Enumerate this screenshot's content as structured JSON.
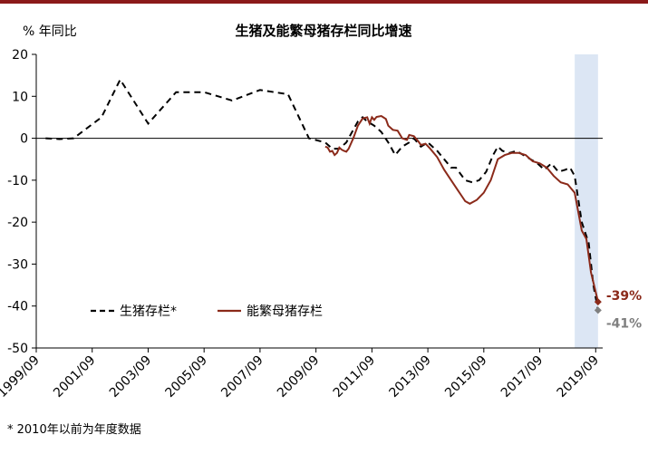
{
  "colors": {
    "top_bar": "#8b1a1a",
    "highlight": "#dce6f4",
    "series_breeding": "#8b2a1a",
    "series_total": "#000000",
    "label_total": "#7f7f7f"
  },
  "chart_data": {
    "type": "line",
    "title": "生猪及能繁母猪存栏同比增速",
    "ylabel": "% 年同比",
    "ylim": [
      -50,
      20
    ],
    "yticks": [
      20,
      10,
      0,
      -10,
      -20,
      -30,
      -40,
      -50
    ],
    "ytick_labels": [
      "20",
      "10",
      "0",
      "-10",
      "-20",
      "-30",
      "-40",
      "-50"
    ],
    "x_date_range": [
      "1999-09",
      "2019-12"
    ],
    "xticks": [
      "1999-09",
      "2001-09",
      "2003-09",
      "2005-09",
      "2007-09",
      "2009-09",
      "2011-09",
      "2013-09",
      "2015-09",
      "2017-09",
      "2019-09"
    ],
    "xtick_labels": [
      "1999/09",
      "2001/09",
      "2003/09",
      "2005/09",
      "2007/09",
      "2009/09",
      "2011/09",
      "2013/09",
      "2015/09",
      "2017/09",
      "2019/09"
    ],
    "highlight_range": [
      "2018-12",
      "2019-10"
    ],
    "grid": false,
    "legend_position": "bottom-left",
    "series": [
      {
        "name": "生猪存栏*",
        "style": "dashed",
        "color": "#000000",
        "points": [
          [
            "2000-01",
            0
          ],
          [
            "2000-07",
            -0.2
          ],
          [
            "2001-01",
            0
          ],
          [
            "2002-01",
            5
          ],
          [
            "2002-09",
            14
          ],
          [
            "2003-09",
            3.5
          ],
          [
            "2004-09",
            11
          ],
          [
            "2005-09",
            11
          ],
          [
            "2006-09",
            9
          ],
          [
            "2007-09",
            11.5
          ],
          [
            "2008-09",
            10.5
          ],
          [
            "2009-06",
            0
          ],
          [
            "2010-01",
            -1
          ],
          [
            "2010-04",
            -2.5
          ],
          [
            "2010-07",
            -2.5
          ],
          [
            "2010-10",
            -1
          ],
          [
            "2011-01",
            2
          ],
          [
            "2011-03",
            4
          ],
          [
            "2011-05",
            5
          ],
          [
            "2011-07",
            4
          ],
          [
            "2011-10",
            3
          ],
          [
            "2012-01",
            1.5
          ],
          [
            "2012-04",
            -1
          ],
          [
            "2012-07",
            -4
          ],
          [
            "2012-10",
            -2
          ],
          [
            "2013-01",
            -1
          ],
          [
            "2013-03",
            0
          ],
          [
            "2013-06",
            -2
          ],
          [
            "2013-09",
            -1
          ],
          [
            "2014-01",
            -3
          ],
          [
            "2014-04",
            -5
          ],
          [
            "2014-07",
            -7
          ],
          [
            "2014-09",
            -7
          ],
          [
            "2015-01",
            -10
          ],
          [
            "2015-04",
            -10.5
          ],
          [
            "2015-07",
            -10
          ],
          [
            "2015-10",
            -8
          ],
          [
            "2016-01",
            -4
          ],
          [
            "2016-03",
            -2
          ],
          [
            "2016-05",
            -3
          ],
          [
            "2016-08",
            -3.5
          ],
          [
            "2016-11",
            -3
          ],
          [
            "2017-02",
            -4
          ],
          [
            "2017-05",
            -5
          ],
          [
            "2017-08",
            -6
          ],
          [
            "2017-11",
            -7.5
          ],
          [
            "2018-02",
            -6
          ],
          [
            "2018-05",
            -8
          ],
          [
            "2018-08",
            -7.5
          ],
          [
            "2018-10",
            -7
          ],
          [
            "2018-12",
            -9
          ],
          [
            "2019-03",
            -20
          ],
          [
            "2019-06",
            -25
          ],
          [
            "2019-08",
            -35
          ],
          [
            "2019-10",
            -41
          ]
        ]
      },
      {
        "name": "能繁母猪存栏",
        "style": "solid",
        "color": "#8b2a1a",
        "points": [
          [
            "2010-01",
            -2
          ],
          [
            "2010-02",
            -2.2
          ],
          [
            "2010-03",
            -3.2
          ],
          [
            "2010-04",
            -3
          ],
          [
            "2010-05",
            -4
          ],
          [
            "2010-06",
            -3.5
          ],
          [
            "2010-07",
            -2.2
          ],
          [
            "2010-08",
            -2.7
          ],
          [
            "2010-09",
            -3
          ],
          [
            "2010-10",
            -3.2
          ],
          [
            "2010-11",
            -2.5
          ],
          [
            "2011-01",
            0
          ],
          [
            "2011-03",
            3
          ],
          [
            "2011-05",
            4.7
          ],
          [
            "2011-07",
            5
          ],
          [
            "2011-08",
            3.5
          ],
          [
            "2011-09",
            5
          ],
          [
            "2011-10",
            4.4
          ],
          [
            "2011-11",
            5.1
          ],
          [
            "2012-01",
            5.3
          ],
          [
            "2012-03",
            4.6
          ],
          [
            "2012-04",
            3
          ],
          [
            "2012-06",
            2
          ],
          [
            "2012-08",
            1.8
          ],
          [
            "2012-10",
            0
          ],
          [
            "2012-12",
            -0.4
          ],
          [
            "2013-01",
            0.8
          ],
          [
            "2013-03",
            0.5
          ],
          [
            "2013-05",
            -0.8
          ],
          [
            "2013-06",
            -1.6
          ],
          [
            "2013-08",
            -1.3
          ],
          [
            "2013-10",
            -2.5
          ],
          [
            "2014-01",
            -4.5
          ],
          [
            "2014-04",
            -7.5
          ],
          [
            "2014-07",
            -10
          ],
          [
            "2014-10",
            -12.5
          ],
          [
            "2015-01",
            -15
          ],
          [
            "2015-03",
            -15.6
          ],
          [
            "2015-06",
            -14.7
          ],
          [
            "2015-09",
            -13
          ],
          [
            "2015-12",
            -10
          ],
          [
            "2016-03",
            -5
          ],
          [
            "2016-06",
            -4
          ],
          [
            "2016-09",
            -3.5
          ],
          [
            "2016-12",
            -3.5
          ],
          [
            "2017-03",
            -4
          ],
          [
            "2017-06",
            -5.5
          ],
          [
            "2017-09",
            -6
          ],
          [
            "2017-12",
            -7
          ],
          [
            "2018-03",
            -9
          ],
          [
            "2018-06",
            -10.5
          ],
          [
            "2018-09",
            -11
          ],
          [
            "2018-12",
            -13
          ],
          [
            "2019-03",
            -22
          ],
          [
            "2019-05",
            -24
          ],
          [
            "2019-07",
            -32
          ],
          [
            "2019-10",
            -39
          ]
        ]
      }
    ],
    "annotations": [
      {
        "text": "-39%",
        "date": "2019-10",
        "value": -39,
        "color": "#8b2a1a"
      },
      {
        "text": "-41%",
        "date": "2019-10",
        "value": -41,
        "color": "#7f7f7f"
      }
    ],
    "footnote": "* 2010年以前为年度数据"
  }
}
